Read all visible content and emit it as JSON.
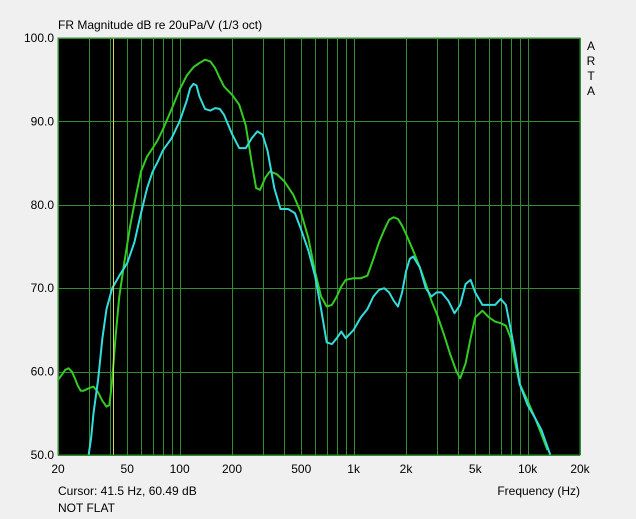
{
  "window": {
    "title": "FR Magnitude dB re 20uPa/V (1/3 oct)",
    "brand_letters": [
      "A",
      "R",
      "T",
      "A"
    ],
    "cursor_readout": "Cursor: 41.5 Hz, 60.49 dB",
    "status": "NOT FLAT"
  },
  "colors": {
    "plot_background": "#000000",
    "grid": "#2f8f2f",
    "cursor_line": "#d8d860",
    "series_green": "#33cc22",
    "series_cyan": "#33dddd"
  },
  "chart_data": {
    "type": "line",
    "title": "FR Magnitude dB re 20uPa/V (1/3 oct)",
    "xlabel": "Frequency (Hz)",
    "ylabel": "",
    "x_scale": "log",
    "xlim": [
      20,
      20000
    ],
    "ylim": [
      50,
      100
    ],
    "grid": true,
    "x_ticks": [
      {
        "value": 20,
        "label": "20"
      },
      {
        "value": 50,
        "label": "50"
      },
      {
        "value": 100,
        "label": "100"
      },
      {
        "value": 200,
        "label": "200"
      },
      {
        "value": 500,
        "label": "500"
      },
      {
        "value": 1000,
        "label": "1k"
      },
      {
        "value": 2000,
        "label": "2k"
      },
      {
        "value": 5000,
        "label": "5k"
      },
      {
        "value": 10000,
        "label": "10k"
      },
      {
        "value": 20000,
        "label": "20k"
      }
    ],
    "y_ticks": [
      {
        "value": 50,
        "label": "50.0"
      },
      {
        "value": 60,
        "label": "60.0"
      },
      {
        "value": 70,
        "label": "70.0"
      },
      {
        "value": 80,
        "label": "80.0"
      },
      {
        "value": 90,
        "label": "90.0"
      },
      {
        "value": 100,
        "label": "100.0"
      }
    ],
    "cursor": {
      "x": 41.5,
      "y": 60.49
    },
    "series": [
      {
        "color": "#33cc22",
        "points": [
          [
            20,
            59.0
          ],
          [
            21,
            59.6
          ],
          [
            22,
            60.2
          ],
          [
            23,
            60.4
          ],
          [
            24,
            60.0
          ],
          [
            25,
            59.2
          ],
          [
            26,
            58.3
          ],
          [
            27,
            57.7
          ],
          [
            28,
            57.7
          ],
          [
            30,
            58.0
          ],
          [
            32,
            58.2
          ],
          [
            34,
            57.5
          ],
          [
            36,
            56.5
          ],
          [
            38,
            55.8
          ],
          [
            39.5,
            56.0
          ],
          [
            41,
            59.0
          ],
          [
            43,
            64.5
          ],
          [
            45,
            69.0
          ],
          [
            48,
            73.0
          ],
          [
            52,
            77.5
          ],
          [
            56,
            81.0
          ],
          [
            60,
            84.0
          ],
          [
            65,
            85.8
          ],
          [
            70,
            86.8
          ],
          [
            75,
            87.8
          ],
          [
            80,
            89.0
          ],
          [
            90,
            91.5
          ],
          [
            100,
            93.8
          ],
          [
            110,
            95.5
          ],
          [
            120,
            96.5
          ],
          [
            130,
            97.0
          ],
          [
            140,
            97.4
          ],
          [
            150,
            97.2
          ],
          [
            160,
            96.4
          ],
          [
            170,
            95.2
          ],
          [
            180,
            94.2
          ],
          [
            200,
            93.2
          ],
          [
            220,
            92.0
          ],
          [
            240,
            89.5
          ],
          [
            260,
            85.0
          ],
          [
            275,
            82.0
          ],
          [
            290,
            81.8
          ],
          [
            310,
            83.2
          ],
          [
            330,
            84.0
          ],
          [
            360,
            83.7
          ],
          [
            400,
            82.8
          ],
          [
            450,
            81.2
          ],
          [
            500,
            79.0
          ],
          [
            550,
            76.0
          ],
          [
            600,
            72.0
          ],
          [
            650,
            69.0
          ],
          [
            700,
            67.8
          ],
          [
            750,
            68.0
          ],
          [
            800,
            69.0
          ],
          [
            850,
            70.2
          ],
          [
            900,
            71.0
          ],
          [
            1000,
            71.2
          ],
          [
            1100,
            71.2
          ],
          [
            1200,
            71.5
          ],
          [
            1300,
            73.5
          ],
          [
            1400,
            75.5
          ],
          [
            1500,
            77.0
          ],
          [
            1600,
            78.2
          ],
          [
            1700,
            78.5
          ],
          [
            1800,
            78.3
          ],
          [
            1900,
            77.5
          ],
          [
            2000,
            76.5
          ],
          [
            2200,
            74.5
          ],
          [
            2400,
            72.5
          ],
          [
            2600,
            70.5
          ],
          [
            2800,
            68.5
          ],
          [
            3000,
            67.0
          ],
          [
            3300,
            64.5
          ],
          [
            3600,
            62.0
          ],
          [
            3900,
            60.0
          ],
          [
            4100,
            59.2
          ],
          [
            4400,
            61.0
          ],
          [
            4700,
            64.0
          ],
          [
            5000,
            66.5
          ],
          [
            5500,
            67.3
          ],
          [
            6000,
            66.5
          ],
          [
            6500,
            66.0
          ],
          [
            7000,
            65.8
          ],
          [
            7500,
            65.5
          ],
          [
            8000,
            64.0
          ],
          [
            8500,
            61.0
          ],
          [
            9000,
            58.5
          ],
          [
            10000,
            56.5
          ],
          [
            11000,
            54.5
          ],
          [
            12000,
            52.5
          ],
          [
            13000,
            50.6
          ]
        ]
      },
      {
        "color": "#33dddd",
        "points": [
          [
            30,
            50.0
          ],
          [
            31,
            52.0
          ],
          [
            32,
            55.0
          ],
          [
            34,
            59.0
          ],
          [
            36,
            64.0
          ],
          [
            38,
            67.5
          ],
          [
            41,
            70.0
          ],
          [
            45,
            71.5
          ],
          [
            50,
            73.0
          ],
          [
            55,
            75.5
          ],
          [
            60,
            79.0
          ],
          [
            65,
            82.0
          ],
          [
            70,
            84.0
          ],
          [
            75,
            85.2
          ],
          [
            80,
            86.5
          ],
          [
            90,
            88.0
          ],
          [
            100,
            90.0
          ],
          [
            110,
            92.5
          ],
          [
            115,
            94.0
          ],
          [
            120,
            94.5
          ],
          [
            125,
            94.3
          ],
          [
            130,
            93.0
          ],
          [
            140,
            91.5
          ],
          [
            150,
            91.3
          ],
          [
            160,
            91.6
          ],
          [
            170,
            91.5
          ],
          [
            180,
            90.8
          ],
          [
            200,
            88.5
          ],
          [
            220,
            86.8
          ],
          [
            240,
            86.8
          ],
          [
            260,
            88.0
          ],
          [
            280,
            88.8
          ],
          [
            300,
            88.4
          ],
          [
            320,
            86.5
          ],
          [
            350,
            82.0
          ],
          [
            380,
            79.5
          ],
          [
            420,
            79.5
          ],
          [
            460,
            79.0
          ],
          [
            500,
            77.0
          ],
          [
            550,
            74.5
          ],
          [
            600,
            71.5
          ],
          [
            650,
            67.5
          ],
          [
            700,
            63.5
          ],
          [
            750,
            63.3
          ],
          [
            800,
            64.0
          ],
          [
            850,
            64.8
          ],
          [
            900,
            64.0
          ],
          [
            1000,
            65.0
          ],
          [
            1100,
            66.5
          ],
          [
            1200,
            67.5
          ],
          [
            1300,
            69.0
          ],
          [
            1400,
            69.8
          ],
          [
            1500,
            70.0
          ],
          [
            1600,
            69.5
          ],
          [
            1700,
            68.5
          ],
          [
            1800,
            67.8
          ],
          [
            1900,
            69.5
          ],
          [
            2000,
            72.0
          ],
          [
            2100,
            73.5
          ],
          [
            2200,
            73.8
          ],
          [
            2400,
            72.5
          ],
          [
            2600,
            70.0
          ],
          [
            2800,
            69.0
          ],
          [
            3000,
            69.5
          ],
          [
            3200,
            69.5
          ],
          [
            3500,
            68.5
          ],
          [
            3800,
            67.0
          ],
          [
            4100,
            68.0
          ],
          [
            4400,
            70.5
          ],
          [
            4700,
            71.0
          ],
          [
            5000,
            69.5
          ],
          [
            5500,
            68.0
          ],
          [
            6000,
            68.0
          ],
          [
            6500,
            68.0
          ],
          [
            7000,
            68.7
          ],
          [
            7500,
            68.0
          ],
          [
            8000,
            65.0
          ],
          [
            8500,
            62.0
          ],
          [
            9000,
            58.5
          ],
          [
            10000,
            56.0
          ],
          [
            11000,
            54.5
          ],
          [
            12000,
            53.0
          ],
          [
            13000,
            51.0
          ],
          [
            13500,
            50.0
          ]
        ]
      }
    ]
  }
}
